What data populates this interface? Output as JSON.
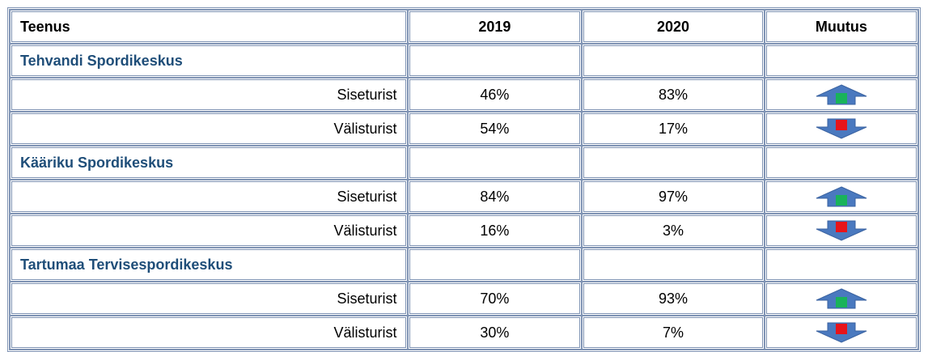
{
  "header": [
    "Teenus",
    "2019",
    "2020",
    "Muutus"
  ],
  "groups": [
    {
      "name": "Tehvandi Spordikeskus",
      "rows": [
        {
          "label": "Siseturist",
          "v2019": "46%",
          "v2020": "83%"
        },
        {
          "label": "Välisturist",
          "v2019": "54%",
          "v2020": "17%"
        }
      ]
    },
    {
      "name": "Kääriku Spordikeskus",
      "rows": [
        {
          "label": "Siseturist",
          "v2019": "84%",
          "v2020": "97%"
        },
        {
          "label": "Välisturist",
          "v2019": "16%",
          "v2020": "3%"
        }
      ]
    },
    {
      "name": "Tartumaa Tervisespordikeskus",
      "rows": [
        {
          "label": "Siseturist",
          "v2019": "70%",
          "v2020": "93%"
        },
        {
          "label": "Välisturist",
          "v2019": "30%",
          "v2020": "7%"
        }
      ]
    }
  ]
}
